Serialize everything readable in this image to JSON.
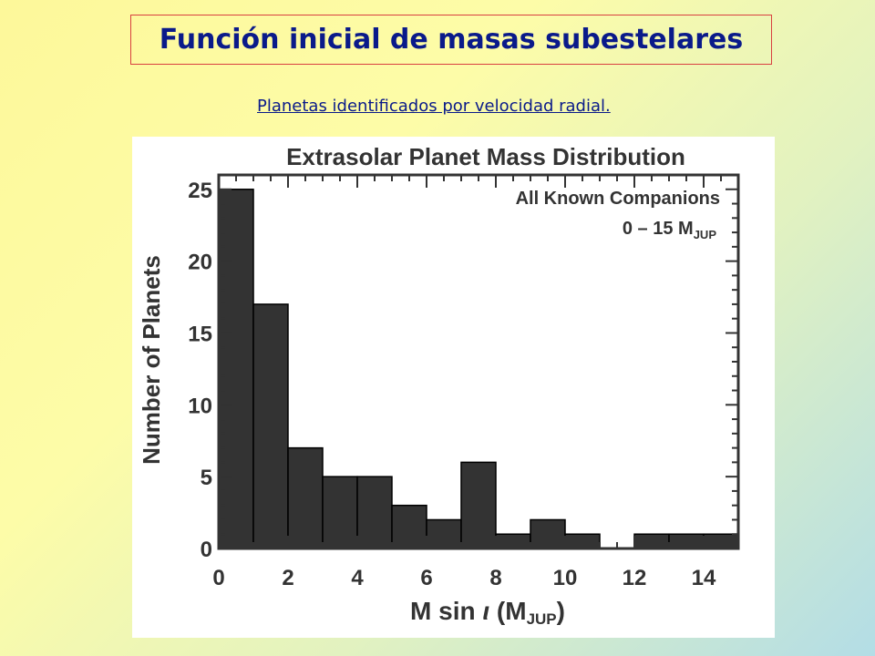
{
  "slide": {
    "title": "Función inicial de masas subestelares",
    "subtitle": "Planetas identificados por velocidad radial."
  },
  "chart_data": {
    "type": "bar",
    "title": "Extrasolar Planet Mass Distribution",
    "annotation": {
      "line1": "All Known Companions",
      "line2_prefix": "0 – 15 M",
      "line2_sub": "JUP"
    },
    "xlabel": {
      "prefix": "M sin ",
      "symbol": "ι",
      "paren_open": " (M",
      "sub": "JUP",
      "paren_close": ")"
    },
    "ylabel": "Number of Planets",
    "bin_edges": [
      0,
      1,
      2,
      3,
      4,
      5,
      6,
      7,
      8,
      9,
      10,
      11,
      12,
      13,
      14,
      15
    ],
    "values": [
      25,
      17,
      7,
      5,
      5,
      3,
      2,
      6,
      1,
      2,
      1,
      0,
      1,
      1,
      1
    ],
    "xlim": [
      0,
      15
    ],
    "ylim": [
      0,
      26
    ],
    "xticks": [
      0,
      2,
      4,
      6,
      8,
      10,
      12,
      14
    ],
    "yticks": [
      0,
      5,
      10,
      15,
      20,
      25
    ],
    "bar_color": "#333333"
  }
}
